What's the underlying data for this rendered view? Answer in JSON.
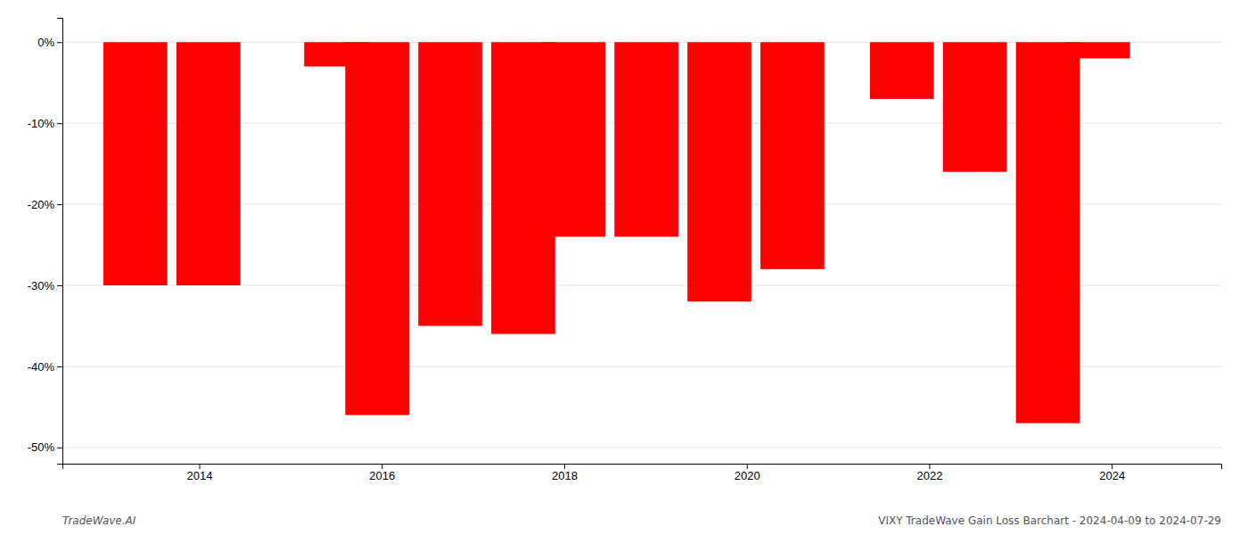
{
  "chart_data": {
    "type": "bar",
    "x": [
      2013.3,
      2014.1,
      2015.5,
      2015.95,
      2016.75,
      2017.55,
      2018.1,
      2018.9,
      2019.7,
      2020.5,
      2021.7,
      2022.5,
      2023.3,
      2023.85
    ],
    "values": [
      -30.0,
      -30.0,
      -3.0,
      -46.0,
      -35.0,
      -36.0,
      -24.0,
      -24.0,
      -32.0,
      -28.0,
      -7.0,
      -16.0,
      -47.0,
      -2.0
    ],
    "color": "#ff0000",
    "xlim": [
      2012.5,
      2025.2
    ],
    "xticks": [
      2014,
      2016,
      2018,
      2020,
      2022,
      2024
    ],
    "ylim": [
      -52,
      3
    ],
    "yticks": [
      {
        "value": 0,
        "label": "0%"
      },
      {
        "value": -10,
        "label": "-10%"
      },
      {
        "value": -20,
        "label": "-20%"
      },
      {
        "value": -30,
        "label": "-30%"
      },
      {
        "value": -40,
        "label": "-40%"
      },
      {
        "value": -50,
        "label": "-50%"
      }
    ],
    "grid": true,
    "annotations": [
      "TradeWave.AI",
      "VIXY TradeWave Gain Loss Barchart - 2024-04-09 to 2024-07-29"
    ]
  }
}
